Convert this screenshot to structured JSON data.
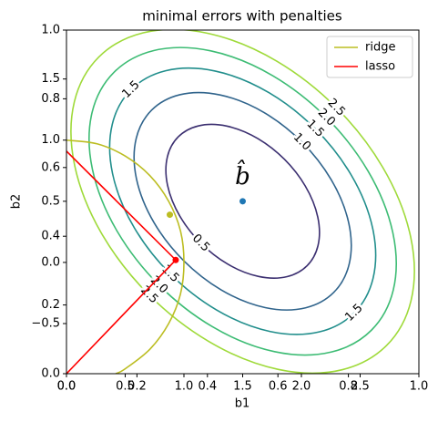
{
  "chart_data": {
    "type": "contour",
    "title": "minimal errors with penalties",
    "xlabel": "b1",
    "ylabel": "b2",
    "xlim": [
      0,
      3
    ],
    "ylim": [
      -0.91,
      1.9
    ],
    "xticks": [
      {
        "value": 0,
        "label": "0.0"
      },
      0.5,
      {
        "value": 1,
        "label": "1.0"
      },
      1.5,
      {
        "value": 2,
        "label": "2.0"
      },
      2.5
    ],
    "yticks": [
      {
        "value": -0.5,
        "label": "−0.5"
      },
      {
        "value": 0,
        "label": "0.0"
      },
      0.5,
      {
        "value": 1,
        "label": "1.0"
      },
      1.5
    ],
    "outer_xlim": [
      0,
      1
    ],
    "outer_ylim": [
      0,
      1
    ],
    "outer_xticks": [
      {
        "value": 0,
        "label": "0.0"
      },
      0.2,
      0.4,
      0.6,
      0.8,
      {
        "value": 1,
        "label": "1.0"
      }
    ],
    "outer_yticks": [
      {
        "value": 0,
        "label": "0.0"
      },
      0.2,
      0.4,
      0.6,
      0.8,
      {
        "value": 1,
        "label": "1.0"
      }
    ],
    "minimum": {
      "label": "b̂",
      "x": 1.5,
      "y": 0.5,
      "color": "#1f77b4"
    },
    "contours": [
      {
        "level": 0.5,
        "color": "#3b2f70"
      },
      {
        "level": {
          "value": 1,
          "label": "1.0"
        },
        "color": "#30648c"
      },
      {
        "level": 1.5,
        "color": "#218e8c"
      },
      {
        "level": {
          "value": 2,
          "label": "2.0"
        },
        "color": "#3dbc74"
      },
      {
        "level": 2.5,
        "color": "#9fda3a"
      }
    ],
    "series": [
      {
        "name": "ridge",
        "color": "#bcbd22",
        "x": [
          0,
          0.26,
          0.5,
          0.71,
          0.87,
          0.97,
          1,
          0.97,
          0.87,
          0.71,
          0.5,
          0.42
        ],
        "y": [
          1,
          0.97,
          0.87,
          0.71,
          0.5,
          0.26,
          0,
          -0.26,
          -0.5,
          -0.71,
          -0.87,
          -0.91
        ],
        "point": {
          "x": 0.88,
          "y": 0.39
        }
      },
      {
        "name": "lasso",
        "color": "#ff0000",
        "x": [
          0,
          0.93,
          0
        ],
        "y": [
          0.91,
          0.02,
          -0.91
        ],
        "point": {
          "x": 0.93,
          "y": 0.02
        }
      }
    ],
    "legend": "upper right"
  }
}
